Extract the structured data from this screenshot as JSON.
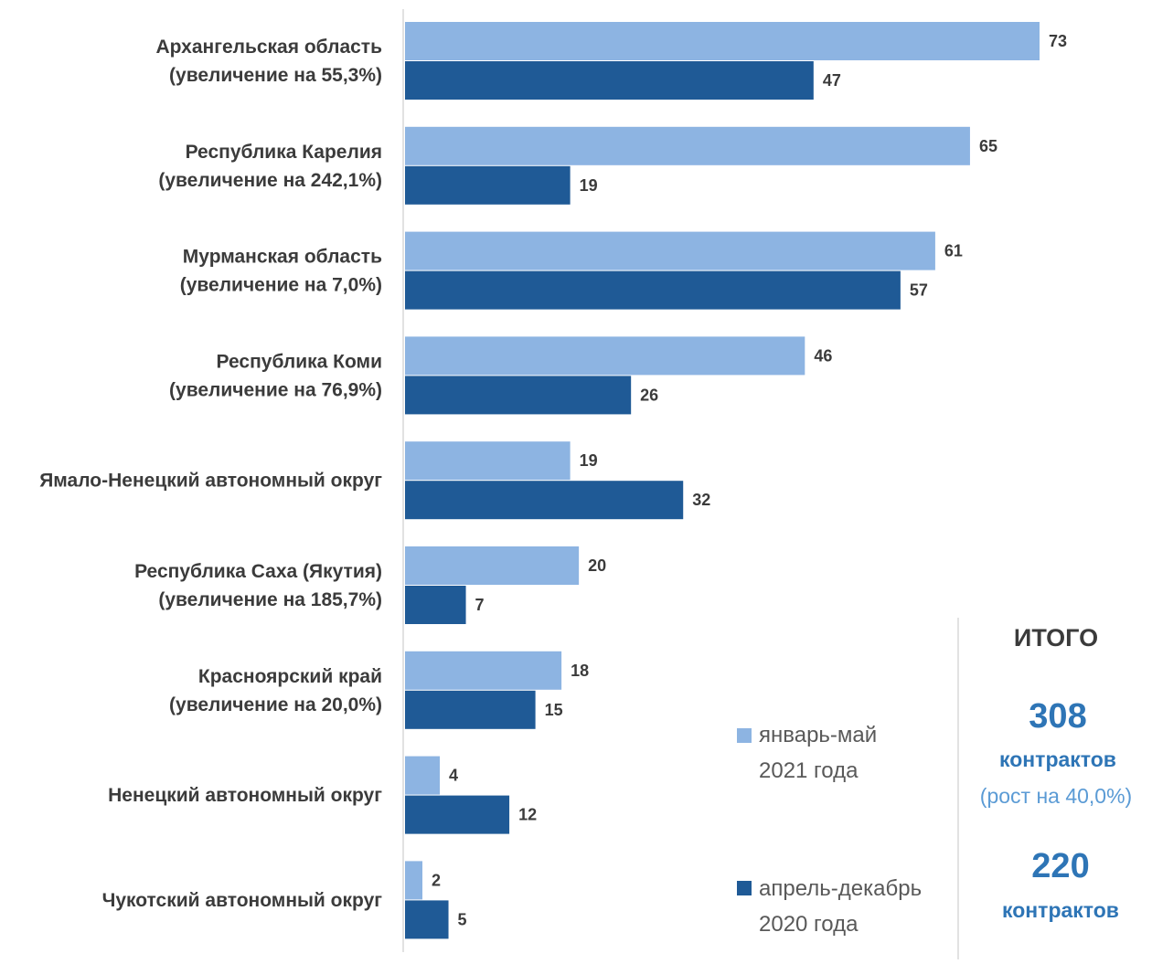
{
  "chart_data": {
    "type": "bar",
    "orientation": "horizontal",
    "categories": [
      [
        "Архангельская область",
        "(увеличение на 55,3%)"
      ],
      [
        "Республика Карелия",
        "(увеличение на 242,1%)"
      ],
      [
        "Мурманская область",
        "(увеличение на 7,0%)"
      ],
      [
        "Республика Коми",
        "(увеличение на 76,9%)"
      ],
      [
        "Ямало-Ненецкий автономный округ"
      ],
      [
        "Республика Саха (Якутия)",
        "(увеличение на 185,7%)"
      ],
      [
        "Красноярский край",
        "(увеличение на 20,0%)"
      ],
      [
        "Ненецкий автономный округ"
      ],
      [
        "Чукотский автономный округ"
      ]
    ],
    "series": [
      {
        "name_lines": [
          "январь-май",
          "2021 года"
        ],
        "color": "#8db4e2",
        "values": [
          73,
          65,
          61,
          46,
          19,
          20,
          18,
          4,
          2
        ]
      },
      {
        "name_lines": [
          "апрель-декабрь",
          "2020 года"
        ],
        "color": "#1f5a96",
        "values": [
          47,
          19,
          57,
          26,
          32,
          7,
          15,
          12,
          5
        ]
      }
    ],
    "xlim": [
      0,
      80
    ],
    "grid": false,
    "legend_position": "bottom-right"
  },
  "totals": {
    "title": "ИТОГО",
    "current_number": "308",
    "current_unit": "контрактов",
    "current_note": "(рост на 40,0%)",
    "previous_number": "220",
    "previous_unit": "контрактов",
    "number_color": "#2e75b6",
    "note_color": "#5b9bd5"
  }
}
